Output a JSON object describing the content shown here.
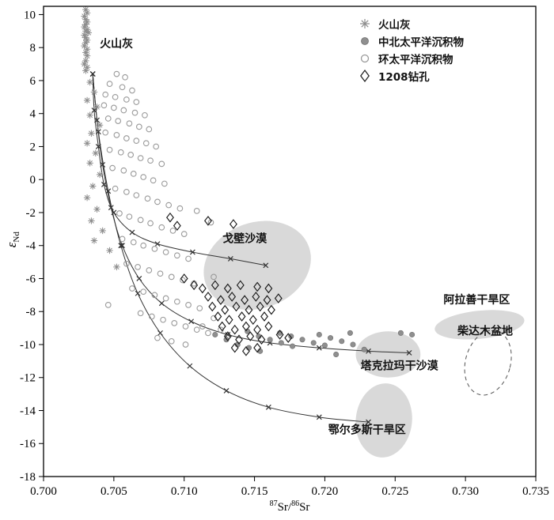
{
  "chart_data": {
    "type": "scatter",
    "title": "",
    "xlabel_parts": [
      "87",
      "Sr/",
      "86",
      "Sr"
    ],
    "ylabel_parts": [
      "ε",
      "Nd"
    ],
    "xlim": [
      0.7,
      0.735
    ],
    "ylim": [
      -18,
      10.5
    ],
    "grid": false,
    "legend_position": "top-right",
    "axis_color": "#000000",
    "region_fill": "#d9d9d9",
    "x_ticks": [
      0.7,
      0.705,
      0.71,
      0.715,
      0.72,
      0.725,
      0.73,
      0.735
    ],
    "x_tick_labels": [
      "0.700",
      "0.705",
      "0.710",
      "0.715",
      "0.720",
      "0.725",
      "0.730",
      "0.735"
    ],
    "y_ticks": [
      10,
      8,
      6,
      4,
      2,
      0,
      -2,
      -4,
      -6,
      -8,
      -10,
      -12,
      -14,
      -16,
      -18
    ],
    "y_tick_labels": [
      "10",
      "8",
      "6",
      "4",
      "2",
      "0",
      "-2",
      "-4",
      "-6",
      "-8",
      "-10",
      "-12",
      "-14",
      "-16",
      "-18"
    ],
    "series": [
      {
        "id": "volcanic-ash",
        "label": "火山灰",
        "marker": "asterisk",
        "color": "#8c8c8c",
        "edge": "#8c8c8c",
        "points": [
          [
            0.703,
            10.3
          ],
          [
            0.7031,
            10.1
          ],
          [
            0.7029,
            9.9
          ],
          [
            0.703,
            9.7
          ],
          [
            0.7031,
            9.55
          ],
          [
            0.703,
            9.4
          ],
          [
            0.7029,
            9.25
          ],
          [
            0.7031,
            9.1
          ],
          [
            0.703,
            9.0
          ],
          [
            0.7032,
            8.9
          ],
          [
            0.7029,
            8.75
          ],
          [
            0.703,
            8.6
          ],
          [
            0.7031,
            8.45
          ],
          [
            0.703,
            8.3
          ],
          [
            0.7029,
            8.1
          ],
          [
            0.7031,
            7.9
          ],
          [
            0.703,
            7.7
          ],
          [
            0.7031,
            7.5
          ],
          [
            0.703,
            7.2
          ],
          [
            0.7029,
            7.0
          ],
          [
            0.7031,
            6.8
          ],
          [
            0.703,
            6.6
          ],
          [
            0.7033,
            5.9
          ],
          [
            0.7036,
            5.3
          ],
          [
            0.7031,
            4.8
          ],
          [
            0.7038,
            4.4
          ],
          [
            0.7033,
            3.9
          ],
          [
            0.704,
            3.3
          ],
          [
            0.7034,
            2.8
          ],
          [
            0.7031,
            2.2
          ],
          [
            0.7037,
            1.6
          ],
          [
            0.7033,
            1.0
          ],
          [
            0.704,
            0.3
          ],
          [
            0.7035,
            -0.4
          ],
          [
            0.7031,
            -1.1
          ],
          [
            0.7038,
            -1.8
          ],
          [
            0.7034,
            -2.5
          ],
          [
            0.7042,
            -3.1
          ],
          [
            0.7036,
            -3.7
          ],
          [
            0.7047,
            -4.3
          ],
          [
            0.7052,
            -5.3
          ]
        ]
      },
      {
        "id": "nc-pacific-sediment",
        "label": "中北太平洋沉积物",
        "marker": "filled-circle",
        "color": "#8f8f8f",
        "edge": "#6e6e6e",
        "points": [
          [
            0.7122,
            -9.4
          ],
          [
            0.713,
            -9.7
          ],
          [
            0.7138,
            -10.0
          ],
          [
            0.7146,
            -10.2
          ],
          [
            0.7154,
            -10.4
          ],
          [
            0.7145,
            -9.2
          ],
          [
            0.7153,
            -9.5
          ],
          [
            0.7161,
            -9.7
          ],
          [
            0.7169,
            -9.9
          ],
          [
            0.7177,
            -10.1
          ],
          [
            0.7168,
            -9.3
          ],
          [
            0.7176,
            -9.5
          ],
          [
            0.7184,
            -9.7
          ],
          [
            0.7192,
            -9.9
          ],
          [
            0.72,
            -10.05
          ],
          [
            0.7196,
            -9.4
          ],
          [
            0.7204,
            -9.6
          ],
          [
            0.7212,
            -9.8
          ],
          [
            0.722,
            -10.0
          ],
          [
            0.7218,
            -9.3
          ],
          [
            0.7228,
            -10.3
          ],
          [
            0.7254,
            -9.3
          ],
          [
            0.7262,
            -9.4
          ],
          [
            0.7208,
            -10.6
          ]
        ]
      },
      {
        "id": "circum-pacific-sediment",
        "label": "环太平洋沉积物",
        "marker": "open-circle",
        "color": "#9a9a9a",
        "edge": "#9a9a9a",
        "points": [
          [
            0.7052,
            6.4
          ],
          [
            0.7058,
            6.2
          ],
          [
            0.7047,
            5.8
          ],
          [
            0.7056,
            5.6
          ],
          [
            0.7063,
            5.4
          ],
          [
            0.7044,
            5.15
          ],
          [
            0.7051,
            5.0
          ],
          [
            0.7059,
            4.85
          ],
          [
            0.7066,
            4.7
          ],
          [
            0.7043,
            4.5
          ],
          [
            0.705,
            4.35
          ],
          [
            0.7057,
            4.2
          ],
          [
            0.7065,
            4.05
          ],
          [
            0.7072,
            3.9
          ],
          [
            0.7046,
            3.7
          ],
          [
            0.7053,
            3.55
          ],
          [
            0.7061,
            3.4
          ],
          [
            0.7068,
            3.2
          ],
          [
            0.7075,
            3.05
          ],
          [
            0.7044,
            2.85
          ],
          [
            0.7052,
            2.7
          ],
          [
            0.7059,
            2.5
          ],
          [
            0.7066,
            2.35
          ],
          [
            0.7073,
            2.2
          ],
          [
            0.708,
            2.0
          ],
          [
            0.7047,
            1.8
          ],
          [
            0.7055,
            1.65
          ],
          [
            0.7062,
            1.5
          ],
          [
            0.7069,
            1.3
          ],
          [
            0.7076,
            1.15
          ],
          [
            0.7084,
            0.95
          ],
          [
            0.7049,
            0.7
          ],
          [
            0.7057,
            0.55
          ],
          [
            0.7064,
            0.35
          ],
          [
            0.7071,
            0.15
          ],
          [
            0.7078,
            -0.05
          ],
          [
            0.7086,
            -0.25
          ],
          [
            0.7051,
            -0.55
          ],
          [
            0.7059,
            -0.75
          ],
          [
            0.7066,
            -0.95
          ],
          [
            0.7074,
            -1.15
          ],
          [
            0.7081,
            -1.35
          ],
          [
            0.7089,
            -1.55
          ],
          [
            0.7097,
            -1.75
          ],
          [
            0.7054,
            -2.05
          ],
          [
            0.7061,
            -2.25
          ],
          [
            0.7069,
            -2.45
          ],
          [
            0.7076,
            -2.65
          ],
          [
            0.7084,
            -2.9
          ],
          [
            0.7092,
            -3.1
          ],
          [
            0.71,
            -3.3
          ],
          [
            0.7056,
            -3.6
          ],
          [
            0.7064,
            -3.8
          ],
          [
            0.7071,
            -4.0
          ],
          [
            0.7079,
            -4.2
          ],
          [
            0.7087,
            -4.4
          ],
          [
            0.7095,
            -4.6
          ],
          [
            0.7103,
            -4.8
          ],
          [
            0.7059,
            -5.1
          ],
          [
            0.7067,
            -5.3
          ],
          [
            0.7075,
            -5.5
          ],
          [
            0.7083,
            -5.7
          ],
          [
            0.7091,
            -5.9
          ],
          [
            0.7099,
            -6.1
          ],
          [
            0.7107,
            -6.3
          ],
          [
            0.7063,
            -6.6
          ],
          [
            0.7071,
            -6.8
          ],
          [
            0.7079,
            -7.0
          ],
          [
            0.7087,
            -7.2
          ],
          [
            0.7095,
            -7.4
          ],
          [
            0.7103,
            -7.6
          ],
          [
            0.7111,
            -7.8
          ],
          [
            0.7046,
            -7.6
          ],
          [
            0.7069,
            -8.1
          ],
          [
            0.7077,
            -8.3
          ],
          [
            0.7085,
            -8.5
          ],
          [
            0.7093,
            -8.7
          ],
          [
            0.7101,
            -8.9
          ],
          [
            0.7109,
            -9.1
          ],
          [
            0.7117,
            -9.3
          ],
          [
            0.7081,
            -9.6
          ],
          [
            0.7091,
            -9.8
          ],
          [
            0.7101,
            -10.0
          ],
          [
            0.7113,
            -8.9
          ],
          [
            0.7121,
            -8.4
          ],
          [
            0.7126,
            -9.1
          ],
          [
            0.7119,
            -2.6
          ],
          [
            0.7109,
            -1.9
          ],
          [
            0.7121,
            -5.9
          ]
        ]
      },
      {
        "id": "site-1208",
        "label": "1208钻孔",
        "marker": "open-diamond",
        "color": "#1a1a1a",
        "edge": "#1a1a1a",
        "points": [
          [
            0.709,
            -2.3
          ],
          [
            0.7095,
            -2.8
          ],
          [
            0.7117,
            -2.5
          ],
          [
            0.7135,
            -2.7
          ],
          [
            0.71,
            -6.0
          ],
          [
            0.7107,
            -6.4
          ],
          [
            0.7113,
            -6.6
          ],
          [
            0.7122,
            -6.4
          ],
          [
            0.7131,
            -6.6
          ],
          [
            0.714,
            -6.4
          ],
          [
            0.7152,
            -6.5
          ],
          [
            0.716,
            -6.6
          ],
          [
            0.7117,
            -7.1
          ],
          [
            0.7126,
            -7.3
          ],
          [
            0.7134,
            -7.1
          ],
          [
            0.7143,
            -7.3
          ],
          [
            0.7151,
            -7.1
          ],
          [
            0.7159,
            -7.3
          ],
          [
            0.7167,
            -7.2
          ],
          [
            0.712,
            -7.7
          ],
          [
            0.7129,
            -7.9
          ],
          [
            0.7137,
            -7.7
          ],
          [
            0.7146,
            -7.9
          ],
          [
            0.7154,
            -7.7
          ],
          [
            0.7162,
            -7.9
          ],
          [
            0.7124,
            -8.3
          ],
          [
            0.7132,
            -8.5
          ],
          [
            0.7141,
            -8.3
          ],
          [
            0.7149,
            -8.5
          ],
          [
            0.7157,
            -8.3
          ],
          [
            0.7127,
            -8.9
          ],
          [
            0.7136,
            -9.1
          ],
          [
            0.7144,
            -8.9
          ],
          [
            0.7152,
            -9.1
          ],
          [
            0.716,
            -8.9
          ],
          [
            0.7131,
            -9.5
          ],
          [
            0.7139,
            -9.7
          ],
          [
            0.7147,
            -9.5
          ],
          [
            0.7155,
            -9.7
          ],
          [
            0.7136,
            -10.2
          ],
          [
            0.7144,
            -10.4
          ],
          [
            0.7152,
            -10.2
          ],
          [
            0.7168,
            -9.4
          ],
          [
            0.7174,
            -9.6
          ]
        ]
      }
    ],
    "mixing_curves": [
      {
        "id": "gobi",
        "color": "#333333",
        "points": [
          [
            0.7035,
            6.4
          ],
          [
            0.7036,
            4.2
          ],
          [
            0.7039,
            2.0
          ],
          [
            0.7043,
            -0.3
          ],
          [
            0.705,
            -2.0
          ],
          [
            0.7063,
            -3.2
          ],
          [
            0.7081,
            -3.9
          ],
          [
            0.7106,
            -4.4
          ],
          [
            0.7133,
            -4.8
          ],
          [
            0.7158,
            -5.2
          ]
        ]
      },
      {
        "id": "taklamakan",
        "color": "#333333",
        "points": [
          [
            0.7035,
            6.4
          ],
          [
            0.7038,
            3.6
          ],
          [
            0.7042,
            0.9
          ],
          [
            0.7048,
            -1.7
          ],
          [
            0.7056,
            -4.0
          ],
          [
            0.7068,
            -6.0
          ],
          [
            0.7084,
            -7.5
          ],
          [
            0.7105,
            -8.6
          ],
          [
            0.7131,
            -9.4
          ],
          [
            0.7161,
            -9.9
          ],
          [
            0.7196,
            -10.2
          ],
          [
            0.7231,
            -10.4
          ],
          [
            0.726,
            -10.5
          ]
        ]
      },
      {
        "id": "ordos",
        "color": "#333333",
        "points": [
          [
            0.7035,
            6.4
          ],
          [
            0.7039,
            2.9
          ],
          [
            0.7046,
            -0.7
          ],
          [
            0.7055,
            -4.0
          ],
          [
            0.7067,
            -6.9
          ],
          [
            0.7083,
            -9.3
          ],
          [
            0.7104,
            -11.3
          ],
          [
            0.713,
            -12.8
          ],
          [
            0.716,
            -13.8
          ],
          [
            0.7196,
            -14.4
          ],
          [
            0.7231,
            -14.7
          ]
        ]
      }
    ],
    "regions": [
      {
        "id": "gobi-desert",
        "label": "戈壁沙漠",
        "label_pos": [
          0.7143,
          -3.8
        ],
        "cx": 0.7152,
        "cy": -5.2,
        "rx": 0.0039,
        "ry": 2.6,
        "rot": -20,
        "fill": "#d9d9d9",
        "style": "solid",
        "stroke": "none"
      },
      {
        "id": "alashan-arid",
        "label": "阿拉善干旱区",
        "label_pos": [
          0.7308,
          -7.5
        ],
        "cx": 0.731,
        "cy": -8.8,
        "rx": 0.0032,
        "ry": 0.85,
        "rot": -6,
        "fill": "#d9d9d9",
        "style": "solid",
        "stroke": "none"
      },
      {
        "id": "taklamakan-desert",
        "label": "塔克拉玛干沙漠",
        "label_pos": [
          0.7253,
          -11.5
        ],
        "cx": 0.7245,
        "cy": -10.6,
        "rx": 0.0023,
        "ry": 1.4,
        "rot": 0,
        "fill": "#d9d9d9",
        "style": "solid",
        "stroke": "none"
      },
      {
        "id": "ordos-arid",
        "label": "鄂尔多斯干旱区",
        "label_pos": [
          0.723,
          -15.4
        ],
        "cx": 0.7242,
        "cy": -14.6,
        "rx": 0.002,
        "ry": 2.25,
        "rot": 6,
        "fill": "#d9d9d9",
        "style": "solid",
        "stroke": "none"
      },
      {
        "id": "qaidam-basin",
        "label": "柴达木盆地",
        "label_pos": [
          0.7314,
          -9.4
        ],
        "cx": 0.7316,
        "cy": -11.1,
        "rx": 0.0016,
        "ry": 2.0,
        "rot": 15,
        "fill": "none",
        "style": "dashed",
        "stroke": "#555555"
      }
    ],
    "annotations": [
      {
        "id": "volcanic-ash-label",
        "text": "火山灰",
        "pos": [
          0.704,
          8.0
        ]
      }
    ]
  }
}
